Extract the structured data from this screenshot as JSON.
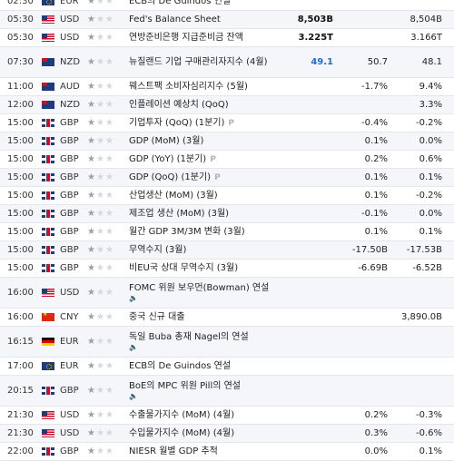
{
  "rows": [
    {
      "time": "02:30",
      "cur": "EUR",
      "stars": 1,
      "event": "ECB의 De Guindos 연설",
      "speech": false,
      "prelim": false,
      "actual": "",
      "forecast": "",
      "previous": "",
      "flag": "eur",
      "tall": false
    },
    {
      "time": "05:30",
      "cur": "USD",
      "stars": 1,
      "event": "Fed's Balance Sheet",
      "speech": false,
      "prelim": false,
      "actual": "8,503B",
      "forecast": "",
      "previous": "8,504B",
      "flag": "usd",
      "tall": false
    },
    {
      "time": "05:30",
      "cur": "USD",
      "stars": 1,
      "event": "연방준비은행 지급준비금 잔액",
      "speech": false,
      "prelim": false,
      "actual": "3.225T",
      "forecast": "",
      "previous": "3.166T",
      "flag": "usd",
      "tall": false
    },
    {
      "time": "07:30",
      "cur": "NZD",
      "stars": 1,
      "event": "뉴질랜드 기업 구매관리자지수 (4월)",
      "speech": false,
      "prelim": false,
      "actual": "49.1",
      "actual_color": "blue",
      "forecast": "50.7",
      "previous": "48.1",
      "flag": "nzd",
      "tall": true
    },
    {
      "time": "11:00",
      "cur": "AUD",
      "stars": 1,
      "event": "웨스트팩 소비자심리지수 (5월)",
      "speech": false,
      "prelim": false,
      "actual": "",
      "forecast": "-1.7%",
      "previous": "9.4%",
      "flag": "aud",
      "tall": false
    },
    {
      "time": "12:00",
      "cur": "NZD",
      "stars": 1,
      "event": "인플레이션 예상치 (QoQ)",
      "speech": false,
      "prelim": false,
      "actual": "",
      "forecast": "",
      "previous": "3.3%",
      "flag": "nzd",
      "tall": false
    },
    {
      "time": "15:00",
      "cur": "GBP",
      "stars": 1,
      "event": "기업투자 (QoQ) (1분기)",
      "speech": false,
      "prelim": true,
      "actual": "",
      "forecast": "-0.4%",
      "previous": "-0.2%",
      "flag": "gbp",
      "tall": false
    },
    {
      "time": "15:00",
      "cur": "GBP",
      "stars": 1,
      "event": "GDP (MoM) (3월)",
      "speech": false,
      "prelim": false,
      "actual": "",
      "forecast": "0.1%",
      "previous": "0.0%",
      "flag": "gbp",
      "tall": false
    },
    {
      "time": "15:00",
      "cur": "GBP",
      "stars": 1,
      "event": "GDP (YoY) (1분기)",
      "speech": false,
      "prelim": true,
      "actual": "",
      "forecast": "0.2%",
      "previous": "0.6%",
      "flag": "gbp",
      "tall": false
    },
    {
      "time": "15:00",
      "cur": "GBP",
      "stars": 1,
      "event": "GDP (QoQ) (1분기)",
      "speech": false,
      "prelim": true,
      "actual": "",
      "forecast": "0.1%",
      "previous": "0.1%",
      "flag": "gbp",
      "tall": false
    },
    {
      "time": "15:00",
      "cur": "GBP",
      "stars": 1,
      "event": "산업생산 (MoM) (3월)",
      "speech": false,
      "prelim": false,
      "actual": "",
      "forecast": "0.1%",
      "previous": "-0.2%",
      "flag": "gbp",
      "tall": false
    },
    {
      "time": "15:00",
      "cur": "GBP",
      "stars": 1,
      "event": "제조업 생산 (MoM) (3월)",
      "speech": false,
      "prelim": false,
      "actual": "",
      "forecast": "-0.1%",
      "previous": "0.0%",
      "flag": "gbp",
      "tall": false
    },
    {
      "time": "15:00",
      "cur": "GBP",
      "stars": 1,
      "event": "월간 GDP 3M/3M 변화 (3월)",
      "speech": false,
      "prelim": false,
      "actual": "",
      "forecast": "0.1%",
      "previous": "0.1%",
      "flag": "gbp",
      "tall": false
    },
    {
      "time": "15:00",
      "cur": "GBP",
      "stars": 1,
      "event": "무역수지 (3월)",
      "speech": false,
      "prelim": false,
      "actual": "",
      "forecast": "-17.50B",
      "previous": "-17.53B",
      "flag": "gbp",
      "tall": false
    },
    {
      "time": "15:00",
      "cur": "GBP",
      "stars": 1,
      "event": "비EU국 상대 무역수지 (3월)",
      "speech": false,
      "prelim": false,
      "actual": "",
      "forecast": "-6.69B",
      "previous": "-6.52B",
      "flag": "gbp",
      "tall": false
    },
    {
      "time": "16:00",
      "cur": "USD",
      "stars": 1,
      "event": "FOMC 위원 보우먼(Bowman) 연설",
      "speech": true,
      "prelim": false,
      "actual": "",
      "forecast": "",
      "previous": "",
      "flag": "usd",
      "tall": true
    },
    {
      "time": "16:00",
      "cur": "CNY",
      "stars": 1,
      "event": "중국 신규 대출",
      "speech": false,
      "prelim": false,
      "actual": "",
      "forecast": "",
      "previous": "3,890.0B",
      "flag": "cny",
      "tall": false
    },
    {
      "time": "16:15",
      "cur": "EUR",
      "stars": 1,
      "event": "독일 Buba 총재 Nagel의 연설",
      "speech": true,
      "prelim": false,
      "actual": "",
      "forecast": "",
      "previous": "",
      "flag": "deu",
      "tall": true
    },
    {
      "time": "17:00",
      "cur": "EUR",
      "stars": 1,
      "event": "ECB의 De Guindos 연설",
      "speech": false,
      "prelim": false,
      "actual": "",
      "forecast": "",
      "previous": "",
      "flag": "eur",
      "tall": false
    },
    {
      "time": "20:15",
      "cur": "GBP",
      "stars": 1,
      "event": "BoE의 MPC 위원 Pill의 연설",
      "speech": true,
      "prelim": false,
      "actual": "",
      "forecast": "",
      "previous": "",
      "flag": "gbp",
      "tall": true
    },
    {
      "time": "21:30",
      "cur": "USD",
      "stars": 1,
      "event": "수출물가지수 (MoM) (4월)",
      "speech": false,
      "prelim": false,
      "actual": "",
      "forecast": "0.2%",
      "previous": "-0.3%",
      "flag": "usd",
      "tall": false
    },
    {
      "time": "21:30",
      "cur": "USD",
      "stars": 1,
      "event": "수입물가지수 (MoM) (4월)",
      "speech": false,
      "prelim": false,
      "actual": "",
      "forecast": "0.3%",
      "previous": "-0.6%",
      "flag": "usd",
      "tall": false
    },
    {
      "time": "22:00",
      "cur": "GBP",
      "stars": 1,
      "event": "NIESR 월별 GDP 추적",
      "speech": false,
      "prelim": false,
      "actual": "",
      "forecast": "0.0%",
      "previous": "0.1%",
      "flag": "gbp",
      "tall": false
    }
  ],
  "labels": {
    "prelim": "P",
    "speech": "🔈"
  },
  "colors": {
    "actual_blue": "#1a6fd6",
    "row_alt": "#f4f6f9",
    "border": "#e3e6ea"
  }
}
